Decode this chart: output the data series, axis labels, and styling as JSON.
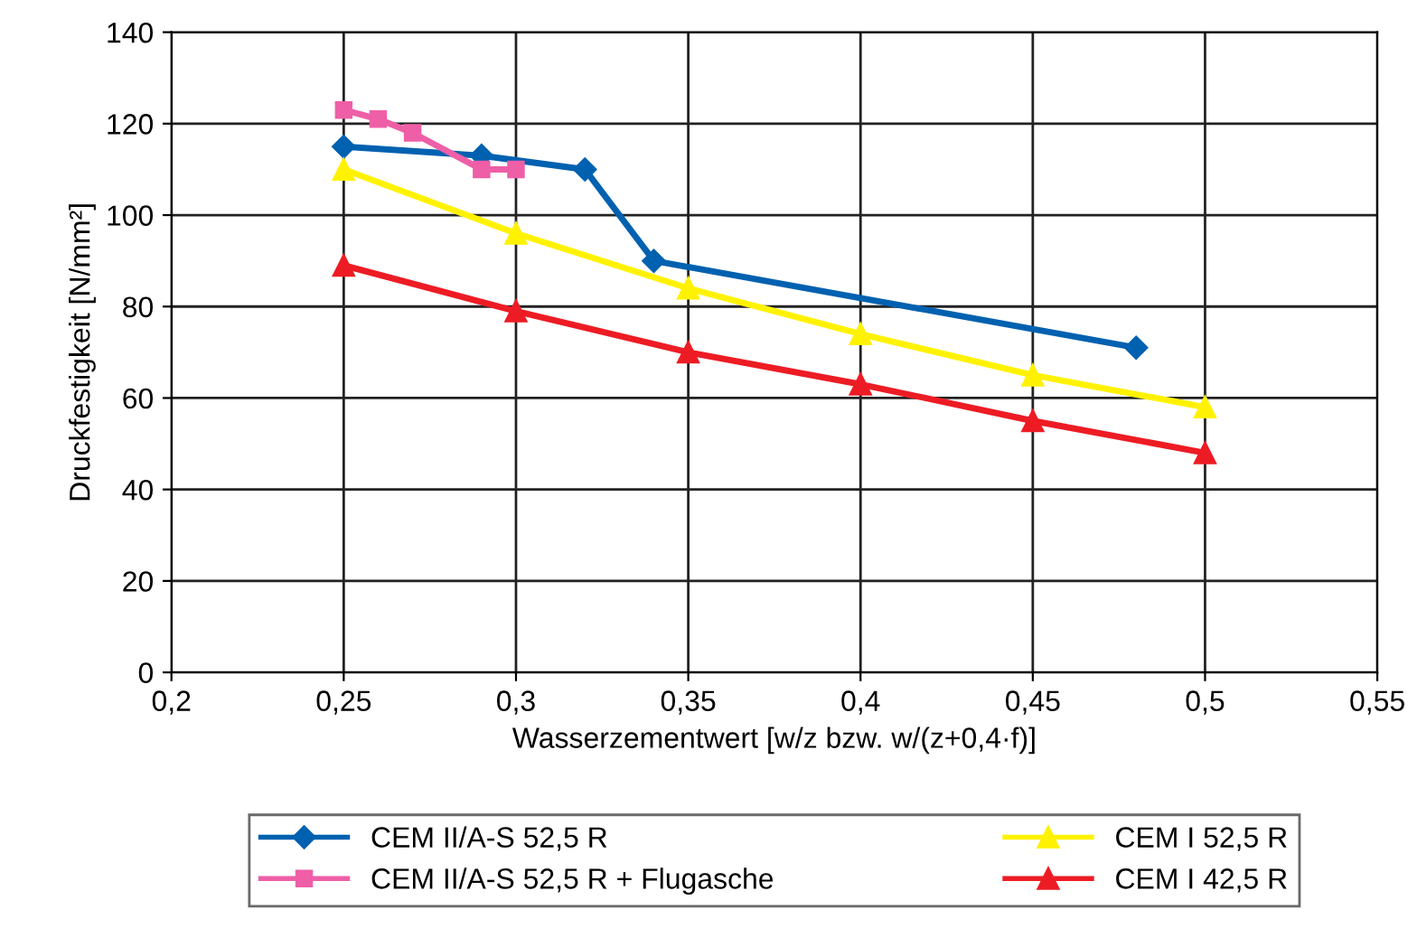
{
  "chart_data": {
    "type": "line",
    "xlabel": "Wasserzementwert [w/z bzw. w/(z+0,4·f)]",
    "ylabel": "Druckfestigkeit [N/mm²]",
    "xlim": [
      0.2,
      0.55
    ],
    "xticks": [
      {
        "value": 0.2,
        "label": "0,2"
      },
      {
        "value": 0.25,
        "label": "0,25"
      },
      {
        "value": 0.3,
        "label": "0,3"
      },
      {
        "value": 0.35,
        "label": "0,35"
      },
      {
        "value": 0.4,
        "label": "0,4"
      },
      {
        "value": 0.45,
        "label": "0,45"
      },
      {
        "value": 0.5,
        "label": "0,5"
      },
      {
        "value": 0.55,
        "label": "0,55"
      }
    ],
    "ylim": [
      0,
      140
    ],
    "yticks": [
      0,
      20,
      40,
      60,
      80,
      100,
      120,
      140
    ],
    "grid": true,
    "legend": "bottom",
    "line_style": "solid",
    "series": [
      {
        "name": "CEM II/A-S 52,5 R",
        "color": "#0061b0",
        "marker": "diamond",
        "x": [
          0.25,
          0.29,
          0.32,
          0.34,
          0.48
        ],
        "values": [
          115,
          113,
          110,
          90,
          71
        ]
      },
      {
        "name": "CEM II/A-S 52,5 R + Flugasche",
        "color": "#ee5fa7",
        "marker": "square",
        "x": [
          0.25,
          0.26,
          0.27,
          0.29,
          0.3
        ],
        "values": [
          123,
          121,
          118,
          110,
          110
        ]
      },
      {
        "name": "CEM I 52,5 R",
        "color": "#fff200",
        "marker": "triangle",
        "x": [
          0.25,
          0.3,
          0.35,
          0.4,
          0.45,
          0.5
        ],
        "values": [
          110,
          96,
          84,
          74,
          65,
          58
        ]
      },
      {
        "name": "CEM I 42,5 R",
        "color": "#ed1c24",
        "marker": "triangle",
        "x": [
          0.25,
          0.3,
          0.35,
          0.4,
          0.45,
          0.5
        ],
        "values": [
          89,
          79,
          70,
          63,
          55,
          48
        ]
      }
    ]
  }
}
